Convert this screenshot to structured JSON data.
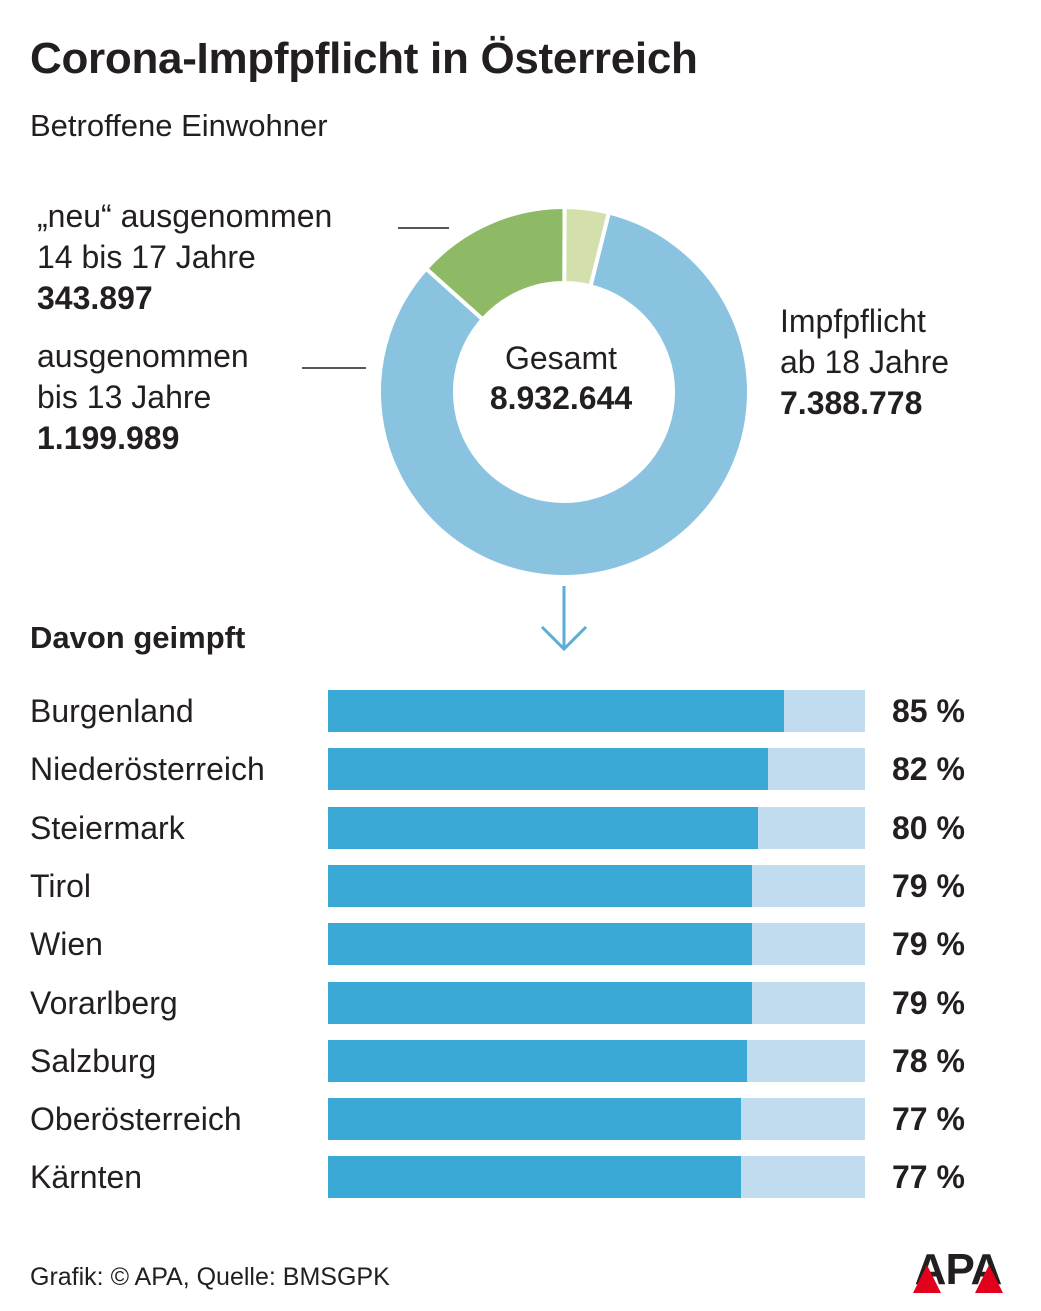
{
  "header": {
    "title": "Corona-Impfpflicht in Österreich",
    "subtitle": "Betroffene Einwohner"
  },
  "colors": {
    "impfpflicht": "#8ac3e0",
    "unter_13": "#8eb965",
    "neu_ausgenommen": "#d3e0ac",
    "bar_fill": "#3aa9d6",
    "bar_track": "#c1dcef"
  },
  "chart_data": [
    {
      "type": "pie",
      "title": "Betroffene Einwohner",
      "center_label": "Gesamt",
      "center_value": "8.932.644",
      "total": 8932644,
      "slices": [
        {
          "label_lines": [
            "Impfpflicht",
            "ab 18 Jahre"
          ],
          "value": 7388778,
          "value_text": "7.388.778",
          "color": "#8ac3e0"
        },
        {
          "label_lines": [
            "ausgenommen",
            "bis 13 Jahre"
          ],
          "value": 1199989,
          "value_text": "1.199.989",
          "color": "#8eb965"
        },
        {
          "label_lines": [
            "„neu“ ausgenommen",
            "14 bis 17 Jahre"
          ],
          "value": 343897,
          "value_text": "343.897",
          "color": "#d3e0ac"
        }
      ]
    },
    {
      "type": "bar",
      "title": "Davon geimpft",
      "xlim": [
        0,
        100
      ],
      "categories": [
        "Burgenland",
        "Niederösterreich",
        "Steiermark",
        "Tirol",
        "Wien",
        "Vorarlberg",
        "Salzburg",
        "Oberösterreich",
        "Kärnten"
      ],
      "values": [
        85,
        82,
        80,
        79,
        79,
        79,
        78,
        77,
        77
      ],
      "value_labels": [
        "85 %",
        "82 %",
        "80 %",
        "79 %",
        "79 %",
        "79 %",
        "78 %",
        "77 %",
        "77 %"
      ]
    }
  ],
  "footer": {
    "source": "Grafik: © APA, Quelle: BMSGPK",
    "logo_text": "APA"
  }
}
